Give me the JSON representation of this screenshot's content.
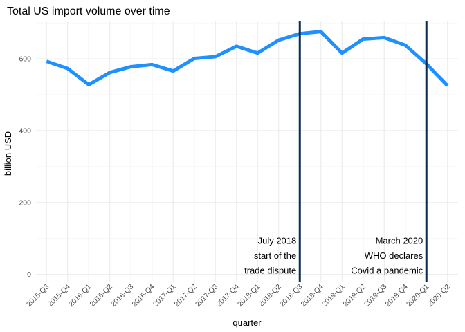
{
  "chart_data": {
    "type": "line",
    "title": "Total US import volume over time",
    "xlabel": "quarter",
    "ylabel": "billion USD",
    "categories": [
      "2015-Q3",
      "2015-Q4",
      "2016-Q1",
      "2016-Q2",
      "2016-Q3",
      "2016-Q4",
      "2017-Q1",
      "2017-Q2",
      "2017-Q3",
      "2017-Q4",
      "2018-Q1",
      "2018-Q2",
      "2018-Q3",
      "2018-Q4",
      "2019-Q1",
      "2019-Q2",
      "2019-Q3",
      "2019-Q4",
      "2020-Q1",
      "2020-Q2"
    ],
    "series": [
      {
        "values": [
          593,
          573,
          528,
          562,
          578,
          584,
          566,
          601,
          606,
          635,
          616,
          652,
          670,
          676,
          616,
          655,
          659,
          638,
          586,
          525
        ],
        "color": "#1e90ff"
      }
    ],
    "ylim": [
      -20,
      706
    ],
    "yticks": [
      0,
      200,
      400,
      600
    ],
    "grid": true,
    "vlines": [
      {
        "x": "2018-Q3",
        "color": "#0a2a52",
        "label_lines": [
          "July 2018",
          "start of the",
          "trade dispute"
        ]
      },
      {
        "x": "2020-Q1",
        "color": "#0a2a52",
        "label_lines": [
          "March 2020",
          "WHO declares",
          "Covid a pandemic"
        ]
      }
    ]
  }
}
